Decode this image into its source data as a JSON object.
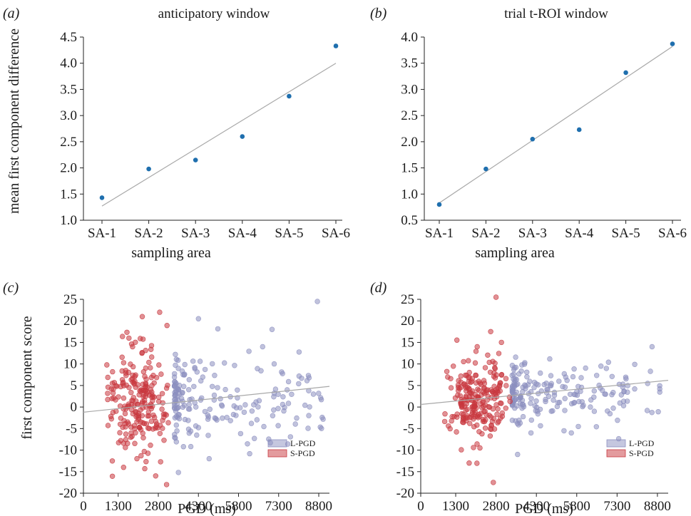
{
  "figure": {
    "panel_labels": [
      "(a)",
      "(b)",
      "(c)",
      "(d)"
    ]
  },
  "chart_data": [
    {
      "type": "scatter",
      "panel": "(a)",
      "title": "anticipatory window",
      "xlabel": "sampling area",
      "ylabel": "mean first component difference",
      "categories": [
        "SA-1",
        "SA-2",
        "SA-3",
        "SA-4",
        "SA-5",
        "SA-6"
      ],
      "yticks": [
        "1.0",
        "1.5",
        "2.0",
        "2.5",
        "3.0",
        "3.5",
        "4.0",
        "4.5"
      ],
      "ylim": [
        1.0,
        4.5
      ],
      "values": [
        1.43,
        1.98,
        2.15,
        2.6,
        3.37,
        4.33
      ],
      "fit": {
        "start": 1.27,
        "end": 4.0
      },
      "point_color": "#1f6fae",
      "fit_color": "#a8a8a8"
    },
    {
      "type": "scatter",
      "panel": "(b)",
      "title": "trial t-ROI window",
      "xlabel": "sampling area",
      "ylabel": "",
      "categories": [
        "SA-1",
        "SA-2",
        "SA-3",
        "SA-4",
        "SA-5",
        "SA-6"
      ],
      "yticks": [
        "0.5",
        "1.0",
        "1.5",
        "2.0",
        "2.5",
        "3.0",
        "3.5",
        "4.0"
      ],
      "ylim": [
        0.5,
        4.0
      ],
      "values": [
        0.8,
        1.48,
        2.05,
        2.23,
        3.32,
        3.87
      ],
      "fit": {
        "start": 0.83,
        "end": 3.82
      },
      "point_color": "#1f6fae",
      "fit_color": "#a8a8a8"
    },
    {
      "type": "scatter",
      "panel": "(c)",
      "title": "",
      "xlabel": "PGD (ms)",
      "ylabel": "first component score",
      "xticks": [
        "0",
        "1300",
        "2800",
        "4300",
        "5800",
        "7300",
        "8800"
      ],
      "xlim": [
        0,
        9200
      ],
      "yticks": [
        "-20",
        "-15",
        "-10",
        "-5",
        "0",
        "5",
        "10",
        "15",
        "20",
        "25"
      ],
      "ylim": [
        -20,
        25
      ],
      "fit": {
        "x": [
          0,
          9200
        ],
        "y": [
          -1.2,
          4.8
        ]
      },
      "legend": [
        "L-PGD",
        "S-PGD"
      ],
      "legend_position": "bottom-right",
      "series_colors": {
        "L-PGD": "#8c8fc0",
        "S-PGD": "#c8373e"
      },
      "series": [
        {
          "name": "L-PGD",
          "n": 190,
          "x_range": [
            3400,
            9000
          ],
          "y_mean": 1.8,
          "y_sd": 5.6,
          "outliers": [
            [
              8750,
              24.5
            ],
            [
              4300,
              20.5
            ],
            [
              6700,
              14
            ],
            [
              8900,
              -5
            ],
            [
              8600,
              3
            ],
            [
              4700,
              -12
            ]
          ]
        },
        {
          "name": "S-PGD",
          "n": 220,
          "x_range": [
            700,
            3400
          ],
          "y_mean": 0.3,
          "y_sd": 6.2,
          "outliers": [
            [
              2850,
              22
            ],
            [
              2200,
              21
            ],
            [
              1700,
              16
            ],
            [
              2700,
              -16
            ],
            [
              1500,
              -14
            ],
            [
              2000,
              -12
            ]
          ]
        }
      ]
    },
    {
      "type": "scatter",
      "panel": "(d)",
      "title": "",
      "xlabel": "PGD (ms)",
      "ylabel": "",
      "xticks": [
        "0",
        "1300",
        "2800",
        "4300",
        "5800",
        "7300",
        "8800"
      ],
      "xlim": [
        0,
        9200
      ],
      "yticks": [
        "-20",
        "-15",
        "-10",
        "-5",
        "0",
        "5",
        "10",
        "15",
        "20",
        "25"
      ],
      "ylim": [
        -20,
        25
      ],
      "fit": {
        "x": [
          0,
          9200
        ],
        "y": [
          0.6,
          6.2
        ]
      },
      "legend": [
        "L-PGD",
        "S-PGD"
      ],
      "legend_position": "bottom-right",
      "series_colors": {
        "L-PGD": "#8c8fc0",
        "S-PGD": "#c8373e"
      },
      "series": [
        {
          "name": "L-PGD",
          "n": 190,
          "x_range": [
            3400,
            8900
          ],
          "y_mean": 3.3,
          "y_sd": 3.6,
          "outliers": [
            [
              8600,
              14
            ],
            [
              6700,
              9.5
            ],
            [
              5600,
              -6
            ],
            [
              4100,
              -6
            ],
            [
              3600,
              -11
            ]
          ]
        },
        {
          "name": "S-PGD",
          "n": 220,
          "x_range": [
            800,
            3400
          ],
          "y_mean": 2.0,
          "y_sd": 4.2,
          "outliers": [
            [
              2800,
              25.5
            ],
            [
              2600,
              17.5
            ],
            [
              3000,
              15
            ],
            [
              2100,
              14
            ],
            [
              2700,
              -17.5
            ],
            [
              1800,
              -13
            ],
            [
              2200,
              -9.5
            ]
          ]
        }
      ]
    }
  ]
}
